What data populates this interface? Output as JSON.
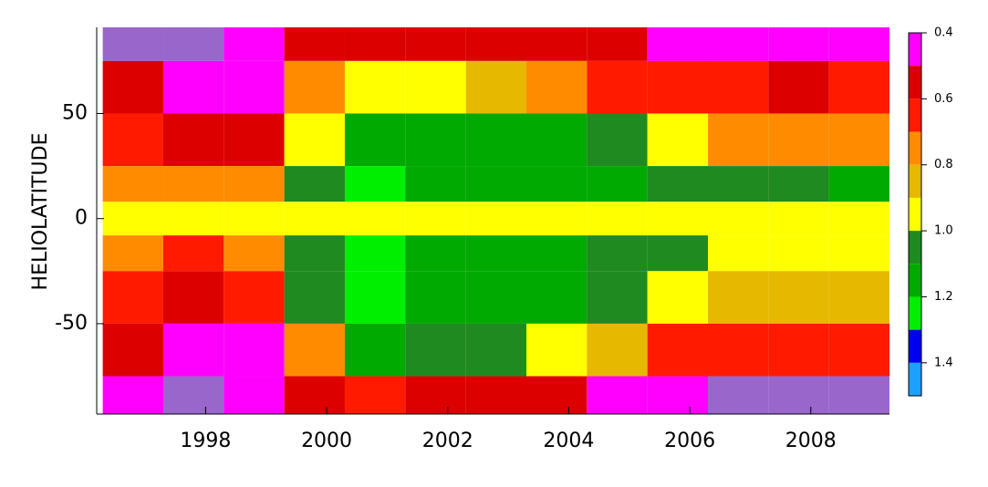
{
  "chart_data": {
    "type": "heatmap",
    "y_label": "HELIOLATITUDE",
    "x_edges": [
      1996.3,
      1997.3,
      1998.3,
      1999.3,
      2000.3,
      2001.3,
      2002.3,
      2003.3,
      2004.3,
      2005.3,
      2006.3,
      2007.3,
      2008.3,
      2009.3
    ],
    "y_edges": [
      91,
      75,
      50,
      25,
      8,
      -8,
      -25,
      -50,
      -75,
      -93
    ],
    "z": [
      [
        0.38,
        0.35,
        0.4,
        0.5,
        0.55,
        0.55,
        0.5,
        0.5,
        0.5,
        0.45,
        0.45,
        0.45,
        0.45
      ],
      [
        0.55,
        0.45,
        0.45,
        0.7,
        0.9,
        0.9,
        0.85,
        0.75,
        0.65,
        0.6,
        0.6,
        0.55,
        0.6
      ],
      [
        0.6,
        0.5,
        0.5,
        0.95,
        1.15,
        1.15,
        1.1,
        1.1,
        1.05,
        0.95,
        0.75,
        0.7,
        0.75
      ],
      [
        0.75,
        0.7,
        0.75,
        1.05,
        1.2,
        1.15,
        1.15,
        1.1,
        1.1,
        1.05,
        1.05,
        1.05,
        1.1
      ],
      [
        0.95,
        0.95,
        0.95,
        0.95,
        0.95,
        0.95,
        0.95,
        0.95,
        0.95,
        0.95,
        0.95,
        0.95,
        0.95
      ],
      [
        0.7,
        0.65,
        0.75,
        1.05,
        1.2,
        1.15,
        1.15,
        1.1,
        1.05,
        1.05,
        0.95,
        0.95,
        0.95
      ],
      [
        0.6,
        0.55,
        0.6,
        1.05,
        1.2,
        1.15,
        1.15,
        1.1,
        1.05,
        0.9,
        0.85,
        0.8,
        0.85
      ],
      [
        0.5,
        0.45,
        0.45,
        0.75,
        1.1,
        1.0,
        1.0,
        0.95,
        0.8,
        0.65,
        0.6,
        0.6,
        0.65
      ],
      [
        0.45,
        0.38,
        0.45,
        0.5,
        0.6,
        0.55,
        0.55,
        0.5,
        0.45,
        0.4,
        0.38,
        0.38,
        0.38
      ]
    ],
    "levels": [
      0.4,
      0.5,
      0.6,
      0.7,
      0.8,
      0.9,
      1.0,
      1.1,
      1.2,
      1.3,
      1.4,
      1.5
    ],
    "colors": [
      "#ff00ff",
      "#dd0000",
      "#ff1a00",
      "#ff8c00",
      "#e6b800",
      "#ffff00",
      "#1f8a1f",
      "#00aa00",
      "#00ee00",
      "#0000ee",
      "#1ea0ff"
    ],
    "under_color": "#9966cc",
    "xlim": [
      1996.2,
      2009.3
    ],
    "xticks": [
      1998,
      2000,
      2002,
      2004,
      2006,
      2008
    ],
    "ylim": [
      -93,
      91
    ],
    "yticks": [
      -50,
      0,
      50
    ],
    "colorbar_ticks": [
      0.4,
      0.6,
      0.8,
      {
        "value": 1,
        "label": "1.0"
      },
      1.2,
      1.4
    ]
  }
}
